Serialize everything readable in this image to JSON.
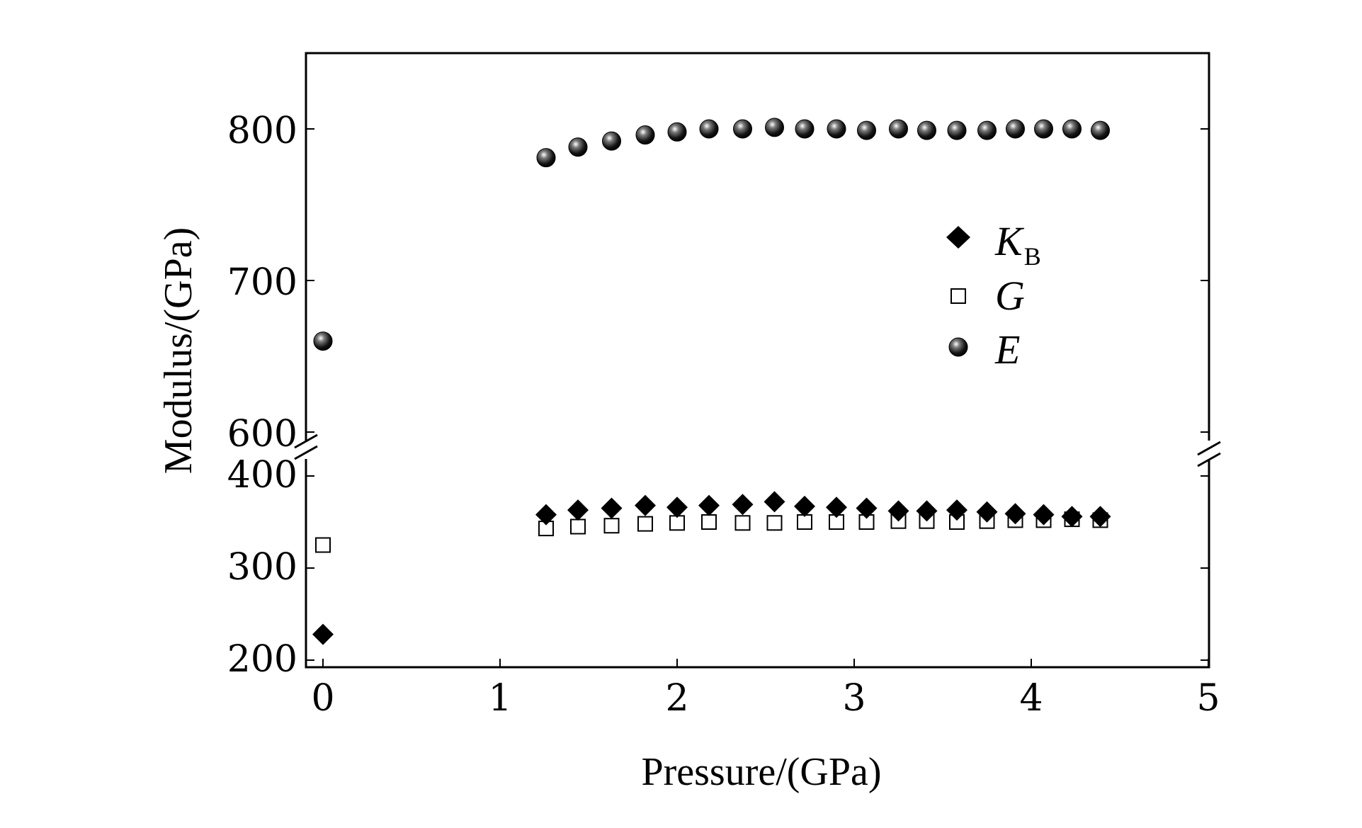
{
  "chart_data": {
    "type": "scatter",
    "title": "",
    "xlabel": "Pressure/(GPa)",
    "ylabel": "Modulus/(GPa)",
    "xlim": [
      0,
      5
    ],
    "x_ticks": [
      "0",
      "1",
      "2",
      "3",
      "4",
      "5"
    ],
    "y_axis_break": true,
    "y_upper_range": [
      590,
      850
    ],
    "y_upper_ticks": [
      "800",
      "700",
      "600"
    ],
    "y_lower_range": [
      195,
      405
    ],
    "y_lower_ticks": [
      "400",
      "300",
      "200"
    ],
    "grid": false,
    "legend_position": "right, upper-middle",
    "series": [
      {
        "name": "K",
        "subscript": "B",
        "marker": "filled-diamond",
        "x": [
          0,
          1.26,
          1.44,
          1.63,
          1.82,
          2.0,
          2.18,
          2.37,
          2.55,
          2.72,
          2.9,
          3.07,
          3.25,
          3.41,
          3.58,
          3.75,
          3.91,
          4.07,
          4.23,
          4.39
        ],
        "y": [
          228,
          358,
          363,
          365,
          368,
          366,
          368,
          369,
          372,
          367,
          366,
          365,
          362,
          362,
          363,
          361,
          359,
          358,
          356,
          356
        ]
      },
      {
        "name": "G",
        "subscript": "",
        "marker": "open-square",
        "x": [
          0,
          1.26,
          1.44,
          1.63,
          1.82,
          2.0,
          2.18,
          2.37,
          2.55,
          2.72,
          2.9,
          3.07,
          3.25,
          3.41,
          3.58,
          3.75,
          3.91,
          4.07,
          4.23,
          4.39
        ],
        "y": [
          325,
          343,
          345,
          346,
          348,
          349,
          350,
          349,
          349,
          350,
          350,
          350,
          351,
          351,
          350,
          351,
          352,
          352,
          353,
          352
        ]
      },
      {
        "name": "E",
        "subscript": "",
        "marker": "shaded-sphere",
        "x": [
          0,
          1.26,
          1.44,
          1.63,
          1.82,
          2.0,
          2.18,
          2.37,
          2.55,
          2.72,
          2.9,
          3.07,
          3.25,
          3.41,
          3.58,
          3.75,
          3.91,
          4.07,
          4.23,
          4.39
        ],
        "y": [
          660,
          781,
          788,
          792,
          796,
          798,
          800,
          800,
          801,
          800,
          800,
          799,
          800,
          799,
          799,
          799,
          800,
          800,
          800,
          799
        ]
      }
    ]
  }
}
